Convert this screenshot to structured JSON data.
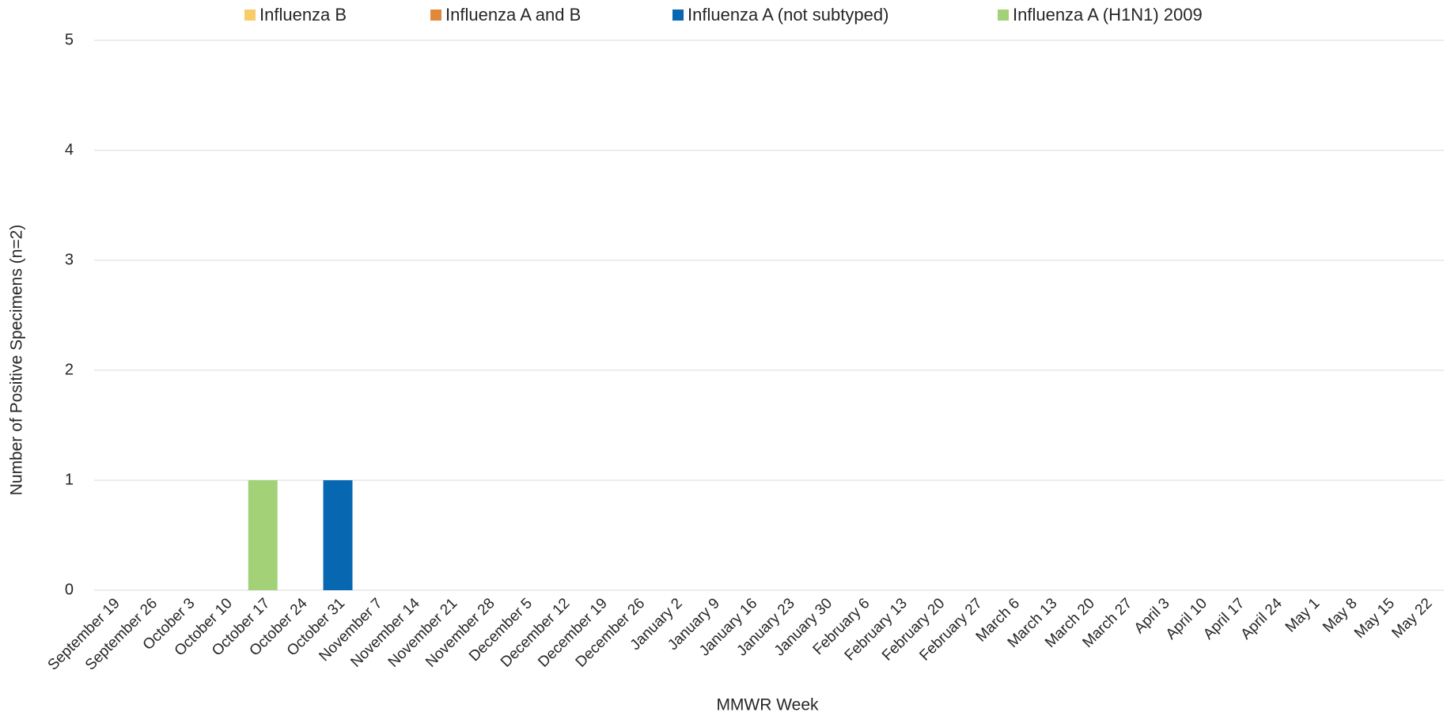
{
  "chart_data": {
    "type": "stacked_bar",
    "x_label": "MMWR Week",
    "y_label": "Number of Positive Specimens (n=2)",
    "categories": [
      "September 19",
      "September 26",
      "October 3",
      "October 10",
      "October 17",
      "October 24",
      "October 31",
      "November 7",
      "November 14",
      "November 21",
      "November 28",
      "December 5",
      "December 12",
      "December 19",
      "December 26",
      "January 2",
      "January 9",
      "January 16",
      "January 23",
      "January 30",
      "February 6",
      "February 13",
      "February 20",
      "February 27",
      "March 6",
      "March 13",
      "March 20",
      "March 27",
      "April 3",
      "April 10",
      "April 17",
      "April 24",
      "May 1",
      "May 8",
      "May 15",
      "May 22"
    ],
    "series": [
      {
        "name": "Influenza B",
        "color": "#f7cd6b",
        "values": [
          0,
          0,
          0,
          0,
          0,
          0,
          0,
          0,
          0,
          0,
          0,
          0,
          0,
          0,
          0,
          0,
          0,
          0,
          0,
          0,
          0,
          0,
          0,
          0,
          0,
          0,
          0,
          0,
          0,
          0,
          0,
          0,
          0,
          0,
          0,
          0
        ]
      },
      {
        "name": "Influenza A and B",
        "color": "#e2883b",
        "values": [
          0,
          0,
          0,
          0,
          0,
          0,
          0,
          0,
          0,
          0,
          0,
          0,
          0,
          0,
          0,
          0,
          0,
          0,
          0,
          0,
          0,
          0,
          0,
          0,
          0,
          0,
          0,
          0,
          0,
          0,
          0,
          0,
          0,
          0,
          0,
          0
        ]
      },
      {
        "name": "Influenza A (not subtyped)",
        "color": "#0767b1",
        "values": [
          0,
          0,
          0,
          0,
          0,
          0,
          1,
          0,
          0,
          0,
          0,
          0,
          0,
          0,
          0,
          0,
          0,
          0,
          0,
          0,
          0,
          0,
          0,
          0,
          0,
          0,
          0,
          0,
          0,
          0,
          0,
          0,
          0,
          0,
          0,
          0
        ]
      },
      {
        "name": "Influenza A (H1N1) 2009",
        "color": "#a3d178",
        "values": [
          0,
          0,
          0,
          0,
          1,
          0,
          0,
          0,
          0,
          0,
          0,
          0,
          0,
          0,
          0,
          0,
          0,
          0,
          0,
          0,
          0,
          0,
          0,
          0,
          0,
          0,
          0,
          0,
          0,
          0,
          0,
          0,
          0,
          0,
          0,
          0
        ]
      }
    ],
    "ylim": [
      0,
      5
    ],
    "yticks": [
      0,
      1,
      2,
      3,
      4,
      5
    ],
    "grid": true,
    "legend": "top"
  }
}
